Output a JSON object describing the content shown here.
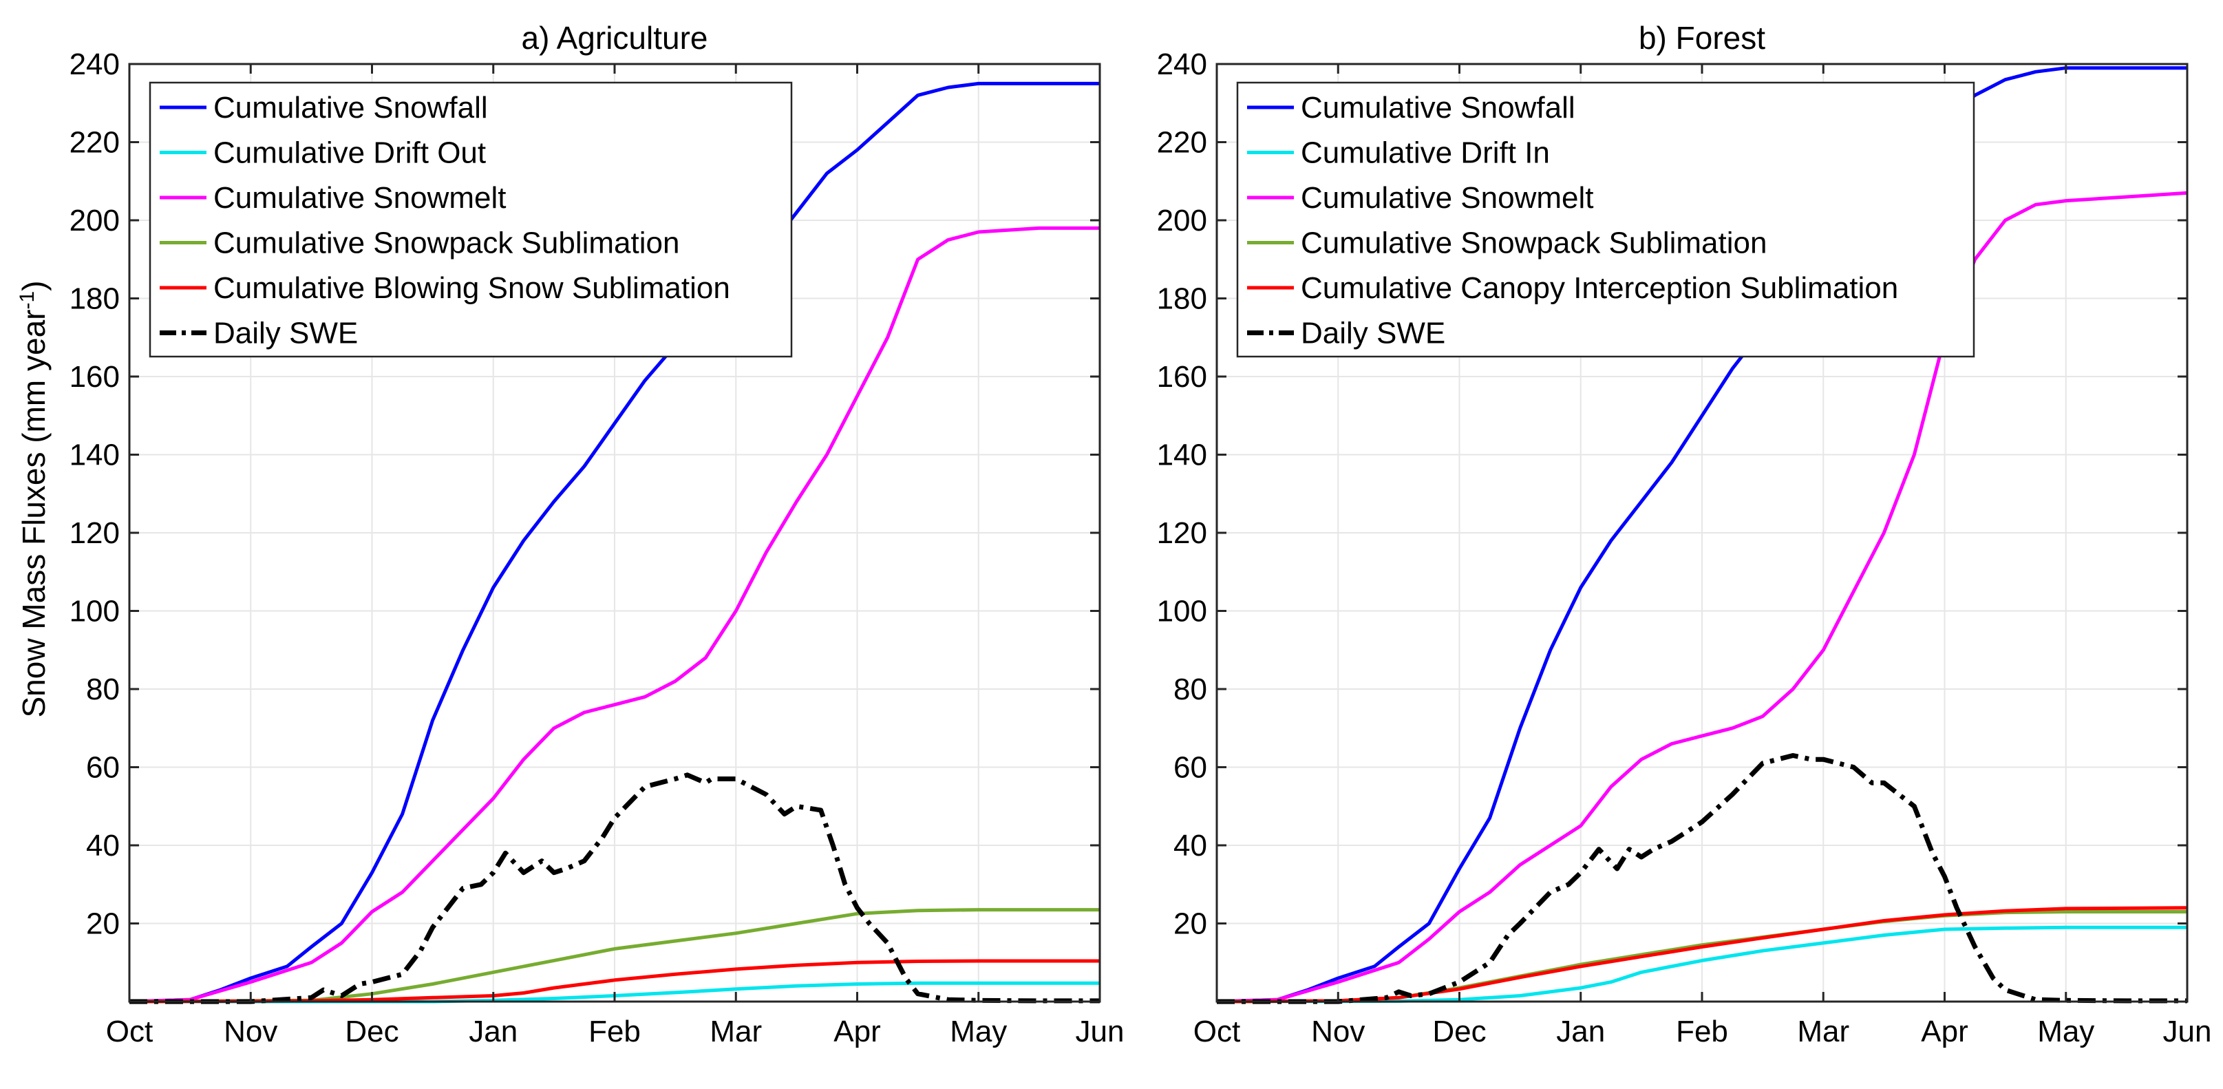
{
  "chart_data": [
    {
      "type": "line",
      "title": "a) Agriculture",
      "xlabel": "",
      "ylabel": "Snow Mass Fluxes (mm year",
      "ylabel_sup": "-1",
      "ylabel_close": ")",
      "x_ticks": [
        "Oct",
        "Nov",
        "Dec",
        "Jan",
        "Feb",
        "Mar",
        "Apr",
        "May",
        "Jun"
      ],
      "xlim": [
        0,
        8
      ],
      "ylim": [
        0,
        240
      ],
      "y_ticks": [
        "20",
        "40",
        "60",
        "80",
        "100",
        "120",
        "140",
        "160",
        "180",
        "200",
        "220",
        "240"
      ],
      "grid": true,
      "legend_location": "top-left",
      "series": [
        {
          "name": "Cumulative Snowfall",
          "color": "#0000ff",
          "dash": "solid",
          "x": [
            0,
            0.5,
            0.75,
            1.0,
            1.3,
            1.5,
            1.75,
            2.0,
            2.25,
            2.5,
            2.75,
            3.0,
            3.25,
            3.5,
            3.75,
            4.0,
            4.25,
            4.5,
            4.75,
            5.0,
            5.25,
            5.5,
            5.75,
            6.0,
            6.25,
            6.5,
            6.75,
            7.0,
            7.5,
            8.0
          ],
          "values": [
            0,
            0.5,
            3,
            6,
            9,
            14,
            20,
            33,
            48,
            72,
            90,
            106,
            118,
            128,
            137,
            148,
            159,
            168,
            176,
            184,
            192,
            202,
            212,
            218,
            225,
            232,
            234,
            235,
            235,
            235
          ]
        },
        {
          "name": "Cumulative Drift Out",
          "color": "#00e5ee",
          "dash": "solid",
          "x": [
            0,
            2.5,
            3.0,
            3.5,
            4.0,
            4.5,
            5.0,
            5.5,
            6.0,
            6.5,
            8.0
          ],
          "values": [
            0,
            0,
            0.3,
            0.8,
            1.5,
            2.3,
            3.2,
            4.0,
            4.5,
            4.7,
            4.7
          ]
        },
        {
          "name": "Cumulative Snowmelt",
          "color": "#ff00ff",
          "dash": "solid",
          "x": [
            0,
            0.5,
            1.0,
            1.5,
            1.75,
            2.0,
            2.25,
            2.5,
            2.75,
            3.0,
            3.25,
            3.5,
            3.75,
            4.0,
            4.25,
            4.5,
            4.75,
            5.0,
            5.25,
            5.5,
            5.75,
            6.0,
            6.25,
            6.5,
            6.75,
            7.0,
            7.5,
            8.0
          ],
          "values": [
            0,
            0.5,
            5,
            10,
            15,
            23,
            28,
            36,
            44,
            52,
            62,
            70,
            74,
            76,
            78,
            82,
            88,
            100,
            115,
            128,
            140,
            155,
            170,
            190,
            195,
            197,
            198,
            198
          ]
        },
        {
          "name": "Cumulative Snowpack Sublimation",
          "color": "#77ac30",
          "dash": "solid",
          "x": [
            0,
            1.5,
            2.0,
            2.5,
            3.0,
            3.5,
            4.0,
            4.5,
            5.0,
            5.5,
            6.0,
            6.5,
            7.0,
            8.0
          ],
          "values": [
            0,
            0.3,
            2,
            4.5,
            7.5,
            10.5,
            13.5,
            15.5,
            17.5,
            20,
            22.5,
            23.3,
            23.5,
            23.5
          ]
        },
        {
          "name": "Cumulative Blowing Snow Sublimation",
          "color": "#ff0000",
          "dash": "solid",
          "x": [
            0,
            1.5,
            2.0,
            2.5,
            3.0,
            3.25,
            3.5,
            4.0,
            4.5,
            5.0,
            5.5,
            6.0,
            6.5,
            7.0,
            8.0
          ],
          "values": [
            0,
            0.2,
            0.5,
            1,
            1.5,
            2.2,
            3.5,
            5.5,
            7.0,
            8.3,
            9.3,
            10.0,
            10.3,
            10.4,
            10.4
          ]
        },
        {
          "name": "Daily SWE",
          "color": "#000000",
          "dash": "dashdot",
          "x": [
            0,
            1.0,
            1.5,
            1.6,
            1.75,
            1.9,
            2.0,
            2.25,
            2.4,
            2.5,
            2.75,
            2.9,
            3.0,
            3.1,
            3.25,
            3.4,
            3.5,
            3.6,
            3.75,
            3.9,
            4.0,
            4.25,
            4.5,
            4.6,
            4.75,
            4.8,
            5.0,
            5.25,
            5.4,
            5.5,
            5.7,
            5.8,
            5.9,
            6.0,
            6.1,
            6.25,
            6.4,
            6.5,
            6.75,
            7.0,
            7.5,
            8.0
          ],
          "values": [
            0,
            0,
            1,
            3,
            1.5,
            4.5,
            5,
            7,
            13,
            19,
            29,
            30,
            33,
            38,
            33,
            36,
            33,
            34,
            36,
            42,
            47,
            55,
            57,
            58,
            56,
            57,
            57,
            53,
            48,
            50,
            49,
            40,
            30,
            24,
            20,
            15,
            6,
            2,
            0.5,
            0.3,
            0.2,
            0.2
          ]
        }
      ]
    },
    {
      "type": "line",
      "title": "b) Forest",
      "xlabel": "",
      "ylabel": "",
      "x_ticks": [
        "Oct",
        "Nov",
        "Dec",
        "Jan",
        "Feb",
        "Mar",
        "Apr",
        "May",
        "Jun"
      ],
      "xlim": [
        0,
        8
      ],
      "ylim": [
        0,
        240
      ],
      "y_ticks": [
        "20",
        "40",
        "60",
        "80",
        "100",
        "120",
        "140",
        "160",
        "180",
        "200",
        "220",
        "240"
      ],
      "grid": true,
      "legend_location": "top-left",
      "series": [
        {
          "name": "Cumulative Snowfall",
          "color": "#0000ff",
          "dash": "solid",
          "x": [
            0,
            0.5,
            0.75,
            1.0,
            1.3,
            1.5,
            1.75,
            2.0,
            2.25,
            2.5,
            2.75,
            3.0,
            3.25,
            3.5,
            3.75,
            4.0,
            4.25,
            4.5,
            4.75,
            5.0,
            5.25,
            5.5,
            5.75,
            6.0,
            6.25,
            6.5,
            6.75,
            7.0,
            7.5,
            8.0
          ],
          "values": [
            0,
            0.5,
            3,
            6,
            9,
            14,
            20,
            34,
            47,
            70,
            90,
            106,
            118,
            128,
            138,
            150,
            162,
            172,
            180,
            190,
            200,
            210,
            220,
            226,
            232,
            236,
            238,
            239,
            239,
            239
          ]
        },
        {
          "name": "Cumulative Drift In",
          "color": "#00e5ee",
          "dash": "solid",
          "x": [
            0,
            1.5,
            2.0,
            2.5,
            3.0,
            3.25,
            3.5,
            4.0,
            4.5,
            5.0,
            5.5,
            6.0,
            6.5,
            7.0,
            8.0
          ],
          "values": [
            0,
            0.1,
            0.5,
            1.5,
            3.5,
            5,
            7.5,
            10.5,
            13,
            15,
            17,
            18.5,
            18.8,
            19,
            19
          ]
        },
        {
          "name": "Cumulative Snowmelt",
          "color": "#ff00ff",
          "dash": "solid",
          "x": [
            0,
            0.5,
            1.0,
            1.5,
            1.75,
            2.0,
            2.25,
            2.5,
            2.75,
            3.0,
            3.25,
            3.5,
            3.75,
            4.0,
            4.25,
            4.5,
            4.75,
            5.0,
            5.25,
            5.5,
            5.75,
            6.0,
            6.25,
            6.5,
            6.75,
            7.0,
            7.5,
            8.0
          ],
          "values": [
            0,
            0.5,
            5,
            10,
            16,
            23,
            28,
            35,
            40,
            45,
            55,
            62,
            66,
            68,
            70,
            73,
            80,
            90,
            105,
            120,
            140,
            170,
            190,
            200,
            204,
            205,
            206,
            207
          ]
        },
        {
          "name": "Cumulative Snowpack Sublimation",
          "color": "#77ac30",
          "dash": "solid",
          "x": [
            0,
            1.0,
            1.5,
            2.0,
            2.5,
            3.0,
            3.5,
            4.0,
            4.5,
            5.0,
            5.5,
            6.0,
            6.5,
            7.0,
            8.0
          ],
          "values": [
            0,
            0.2,
            1,
            3.5,
            6.5,
            9.5,
            12,
            14.5,
            16.5,
            18.5,
            20.5,
            22,
            22.8,
            23,
            23
          ]
        },
        {
          "name": "Cumulative Canopy Interception Sublimation",
          "color": "#ff0000",
          "dash": "solid",
          "x": [
            0,
            1.0,
            1.5,
            2.0,
            2.5,
            3.0,
            3.5,
            4.0,
            4.5,
            5.0,
            5.5,
            6.0,
            6.5,
            7.0,
            8.0
          ],
          "values": [
            0,
            0.2,
            1,
            3.2,
            6.2,
            9,
            11.5,
            14,
            16.3,
            18.5,
            20.7,
            22.2,
            23.2,
            23.8,
            24
          ]
        },
        {
          "name": "Daily SWE",
          "color": "#000000",
          "dash": "dashdot",
          "x": [
            0,
            1.0,
            1.4,
            1.5,
            1.6,
            1.75,
            2.0,
            2.25,
            2.4,
            2.5,
            2.75,
            2.9,
            3.0,
            3.15,
            3.3,
            3.4,
            3.5,
            3.6,
            3.75,
            4.0,
            4.25,
            4.5,
            4.75,
            4.9,
            5.0,
            5.25,
            5.4,
            5.5,
            5.75,
            5.9,
            6.0,
            6.1,
            6.25,
            6.4,
            6.5,
            6.75,
            7.0,
            7.5,
            8.0
          ],
          "values": [
            0,
            0,
            1,
            2.5,
            1.5,
            2,
            5,
            10,
            17,
            20,
            28,
            30,
            33,
            39,
            34,
            39,
            37,
            39,
            41,
            46,
            53,
            61,
            63,
            62,
            62,
            60,
            56,
            56,
            50,
            38,
            32,
            24,
            14,
            6,
            3,
            0.5,
            0.3,
            0.2,
            0.2
          ]
        }
      ]
    }
  ]
}
